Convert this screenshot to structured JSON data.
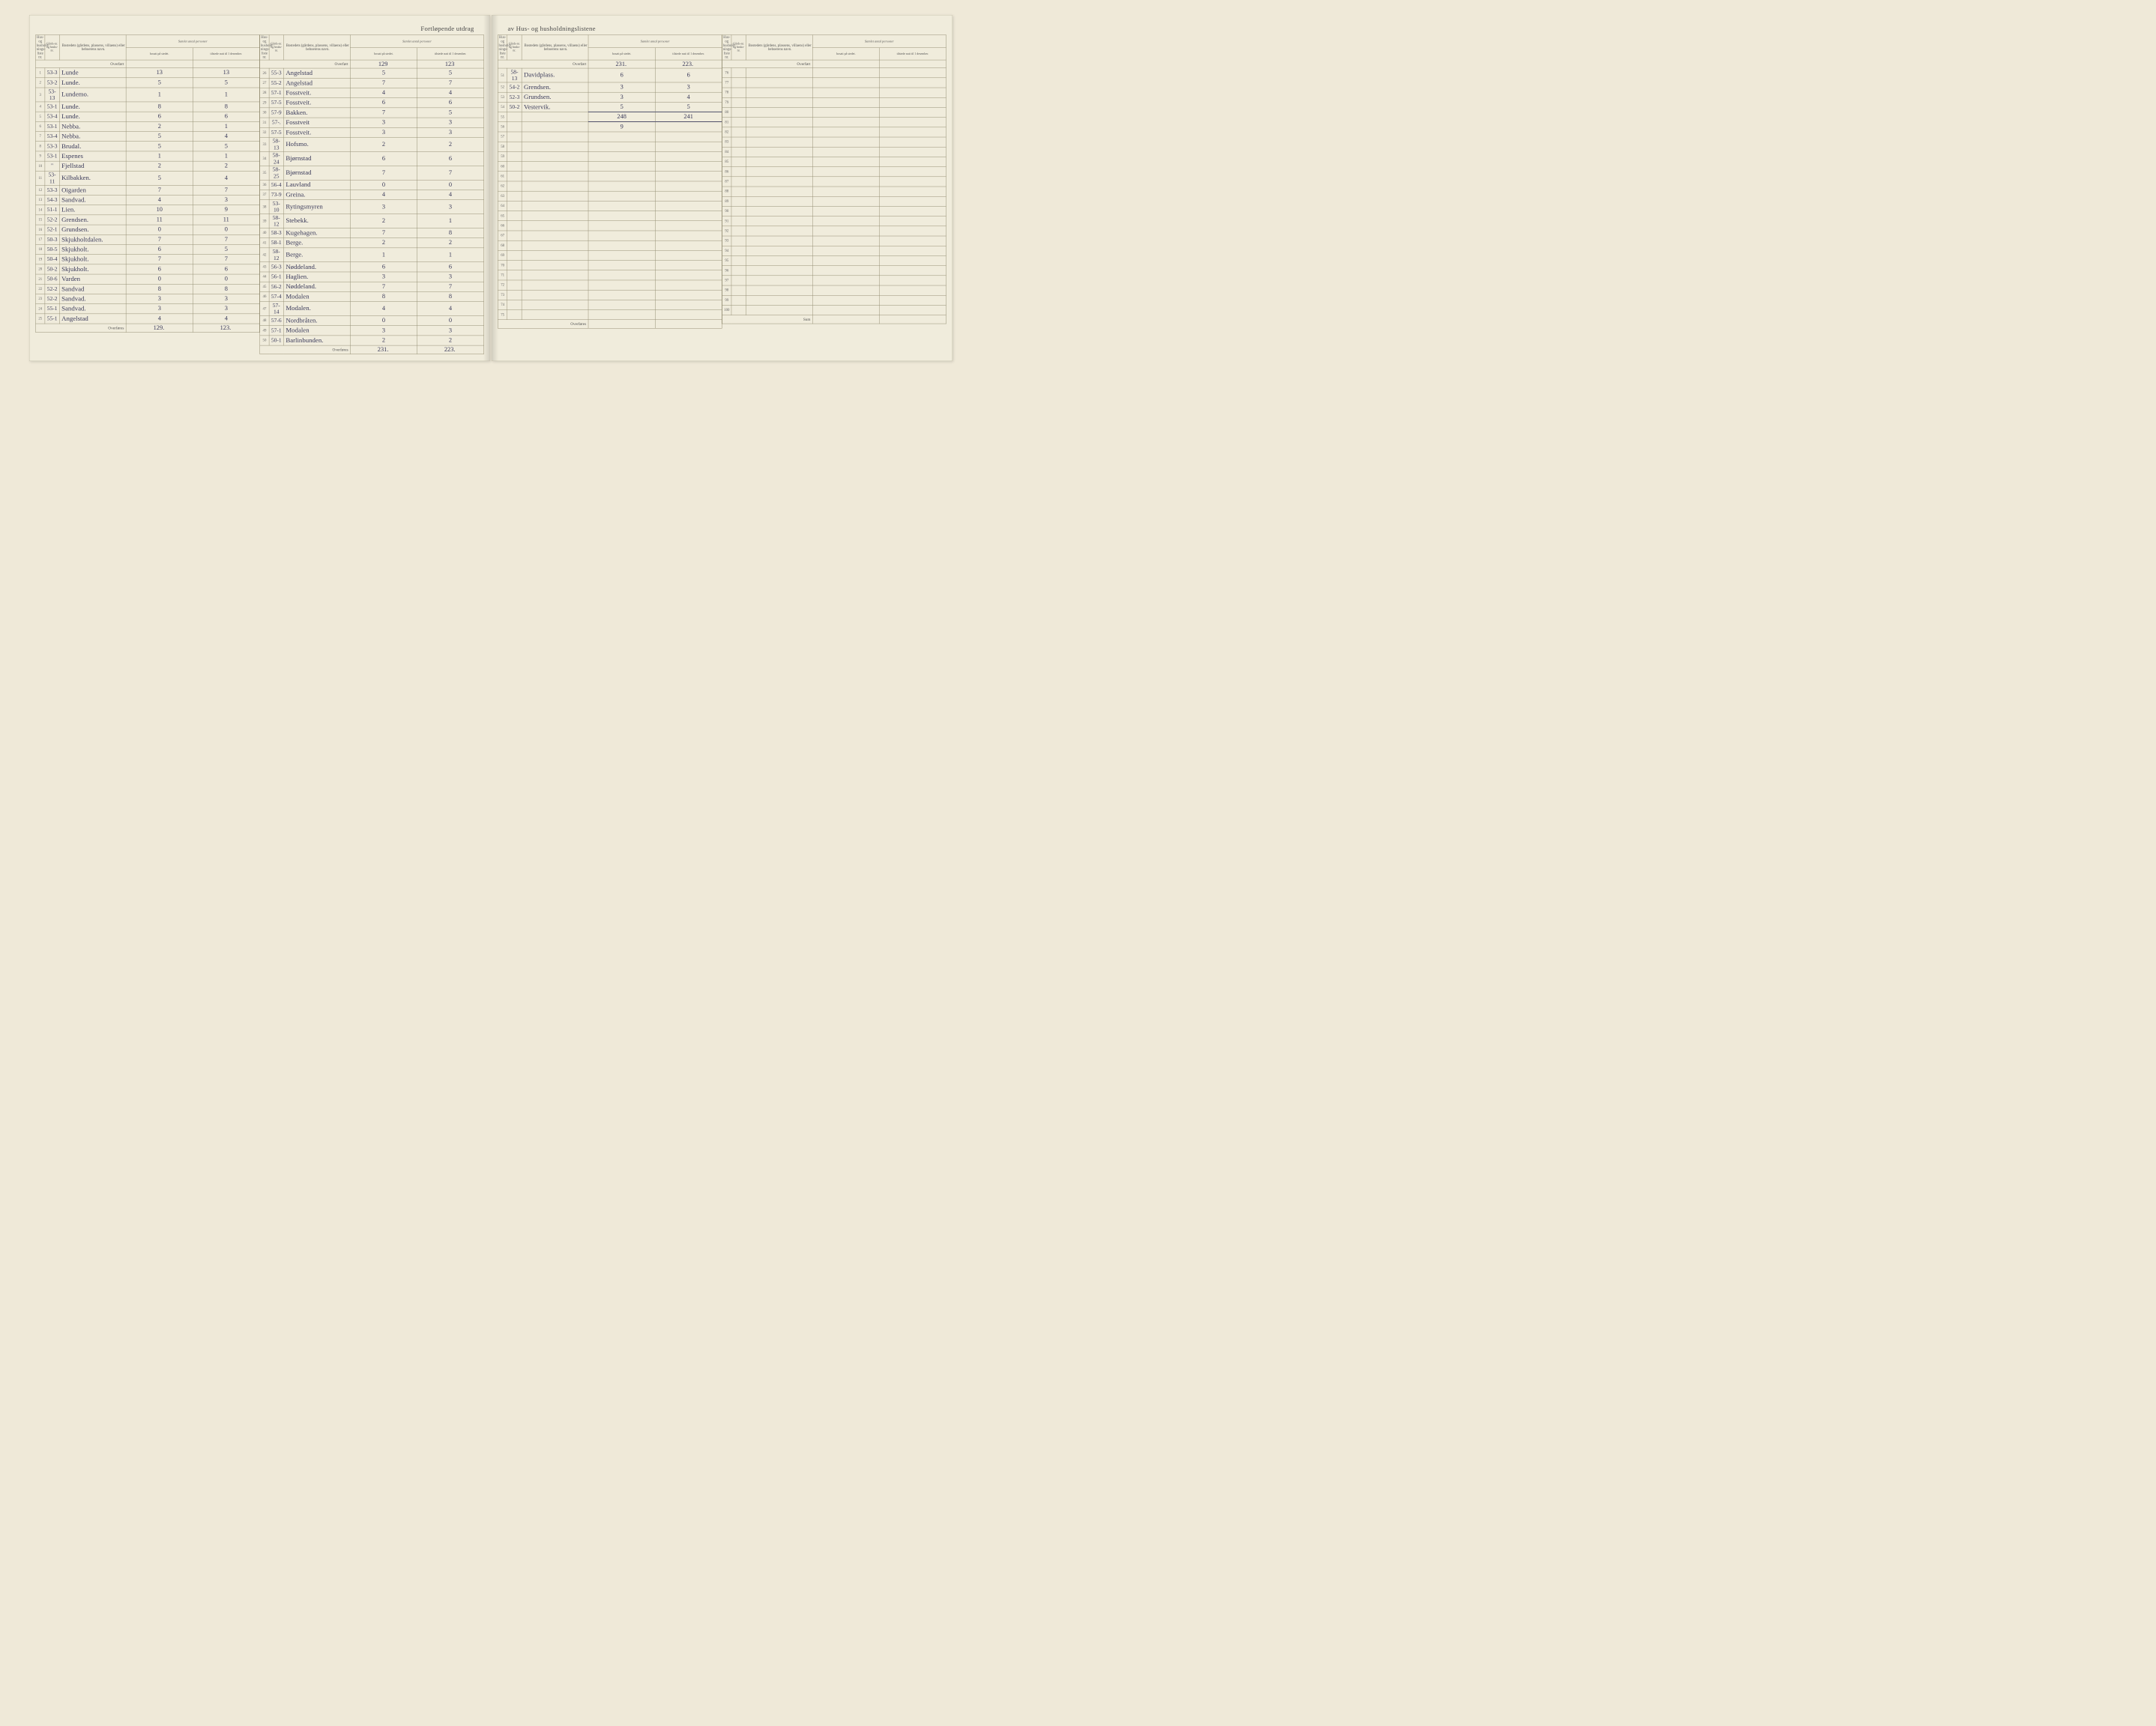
{
  "title_left": "Fortløpende utdrag",
  "title_right": "av Hus- og husholdningslistene",
  "headers": {
    "hus_nr": "Hus- og hushold-nings-liste nr.",
    "gard_nr": "Gårds-nr. og bruks-nr.",
    "bosted": "Bostedets (gårdens, plassens, villaens) eller beboerens navn.",
    "samlet_group": "Samlet antal personer",
    "bosatt": "bosatt på stedet.",
    "tilstede": "tilstede natt til 1 desember."
  },
  "overfort_label": "Overført",
  "overfores_label": "Overføres",
  "sum_label": "Sum",
  "col1": {
    "rows": [
      {
        "n": "1",
        "g": "53-3",
        "b": "Lunde",
        "bo": "13",
        "ti": "13"
      },
      {
        "n": "2",
        "g": "53-2",
        "b": "Lunde.",
        "bo": "5",
        "ti": "5"
      },
      {
        "n": "3",
        "g": "53-13",
        "b": "Lundemo.",
        "bo": "1",
        "ti": "1"
      },
      {
        "n": "4",
        "g": "53-1",
        "b": "Lunde.",
        "bo": "8",
        "ti": "8"
      },
      {
        "n": "5",
        "g": "53-4",
        "b": "Lunde.",
        "bo": "6",
        "ti": "6"
      },
      {
        "n": "6",
        "g": "53-1",
        "b": "Nebba.",
        "bo": "2",
        "ti": "1"
      },
      {
        "n": "7",
        "g": "53-4",
        "b": "Nebba.",
        "bo": "5",
        "ti": "4"
      },
      {
        "n": "8",
        "g": "53-3",
        "b": "Brudal.",
        "bo": "5",
        "ti": "5"
      },
      {
        "n": "9",
        "g": "53-1",
        "b": "Espenes",
        "bo": "1",
        "ti": "1"
      },
      {
        "n": "10",
        "g": "\"",
        "b": "Fjellstad",
        "bo": "2",
        "ti": "2"
      },
      {
        "n": "11",
        "g": "53-11",
        "b": "Kilbakken.",
        "bo": "5",
        "ti": "4"
      },
      {
        "n": "12",
        "g": "53-3",
        "b": "Oigarden",
        "bo": "7",
        "ti": "7"
      },
      {
        "n": "13",
        "g": "54-3",
        "b": "Sandvad.",
        "bo": "4",
        "ti": "3"
      },
      {
        "n": "14",
        "g": "51-1",
        "b": "Lien.",
        "bo": "10",
        "ti": "9"
      },
      {
        "n": "15",
        "g": "52-2",
        "b": "Grendsen.",
        "bo": "11",
        "ti": "11"
      },
      {
        "n": "16",
        "g": "52-1",
        "b": "Grundsen.",
        "bo": "0",
        "ti": "0"
      },
      {
        "n": "17",
        "g": "50-3",
        "b": "Skjukholtdalen.",
        "bo": "7",
        "ti": "7"
      },
      {
        "n": "18",
        "g": "50-5",
        "b": "Skjukholt.",
        "bo": "6",
        "ti": "5"
      },
      {
        "n": "19",
        "g": "50-4",
        "b": "Skjukholt.",
        "bo": "7",
        "ti": "7"
      },
      {
        "n": "20",
        "g": "50-2",
        "b": "Skjukholt.",
        "bo": "6",
        "ti": "6"
      },
      {
        "n": "21",
        "g": "50-6",
        "b": "Varden",
        "bo": "0",
        "ti": "0"
      },
      {
        "n": "22",
        "g": "52-2",
        "b": "Sandvad",
        "bo": "8",
        "ti": "8"
      },
      {
        "n": "23",
        "g": "52-2",
        "b": "Sandvad.",
        "bo": "3",
        "ti": "3"
      },
      {
        "n": "24",
        "g": "55-1",
        "b": "Sandvad.",
        "bo": "3",
        "ti": "3"
      },
      {
        "n": "25",
        "g": "55-1",
        "b": "Angelstad",
        "bo": "4",
        "ti": "4"
      }
    ],
    "overfort": {
      "bo": "",
      "ti": ""
    },
    "overfores": {
      "bo": "129.",
      "ti": "123."
    }
  },
  "col2": {
    "rows": [
      {
        "n": "26",
        "g": "55-3",
        "b": "Angelstad",
        "bo": "5",
        "ti": "5"
      },
      {
        "n": "27",
        "g": "55-2",
        "b": "Angelstad",
        "bo": "7",
        "ti": "7"
      },
      {
        "n": "28",
        "g": "57-1",
        "b": "Fosstveit.",
        "bo": "4",
        "ti": "4"
      },
      {
        "n": "29",
        "g": "57-5",
        "b": "Fosstveit.",
        "bo": "6",
        "ti": "6"
      },
      {
        "n": "30",
        "g": "57-9",
        "b": "Bakken.",
        "bo": "7",
        "ti": "5"
      },
      {
        "n": "31",
        "g": "57-.",
        "b": "Fosstveit",
        "bo": "3",
        "ti": "3"
      },
      {
        "n": "32",
        "g": "57-5",
        "b": "Fosstveit.",
        "bo": "3",
        "ti": "3"
      },
      {
        "n": "33",
        "g": "58-13",
        "b": "Hofsmo.",
        "bo": "2",
        "ti": "2"
      },
      {
        "n": "34",
        "g": "58-24",
        "b": "Bjørnstad",
        "bo": "6",
        "ti": "6"
      },
      {
        "n": "35",
        "g": "58-25",
        "b": "Bjørnstad",
        "bo": "7",
        "ti": "7"
      },
      {
        "n": "36",
        "g": "56-4",
        "b": "Lauvland",
        "bo": "0",
        "ti": "0"
      },
      {
        "n": "37",
        "g": "73-9",
        "b": "Greina.",
        "bo": "4",
        "ti": "4"
      },
      {
        "n": "38",
        "g": "53-10",
        "b": "Rytingsmyren",
        "bo": "3",
        "ti": "3"
      },
      {
        "n": "39",
        "g": "58-12",
        "b": "Stebekk.",
        "bo": "2",
        "ti": "1"
      },
      {
        "n": "40",
        "g": "58-3",
        "b": "Kugehagen.",
        "bo": "7",
        "ti": "8"
      },
      {
        "n": "41",
        "g": "58-1",
        "b": "Berge.",
        "bo": "2",
        "ti": "2"
      },
      {
        "n": "42",
        "g": "58-12",
        "b": "Berge.",
        "bo": "1",
        "ti": "1"
      },
      {
        "n": "43",
        "g": "56-3",
        "b": "Nøddeland.",
        "bo": "6",
        "ti": "6"
      },
      {
        "n": "44",
        "g": "56-1",
        "b": "Haglien.",
        "bo": "3",
        "ti": "3"
      },
      {
        "n": "45",
        "g": "56-2",
        "b": "Nøddeland.",
        "bo": "7",
        "ti": "7"
      },
      {
        "n": "46",
        "g": "57-4",
        "b": "Modalen",
        "bo": "8",
        "ti": "8"
      },
      {
        "n": "47",
        "g": "57-14",
        "b": "Modalen.",
        "bo": "4",
        "ti": "4"
      },
      {
        "n": "48",
        "g": "57-6",
        "b": "Nordbråten.",
        "bo": "0",
        "ti": "0"
      },
      {
        "n": "49",
        "g": "57-1",
        "b": "Modalen",
        "bo": "3",
        "ti": "3"
      },
      {
        "n": "50",
        "g": "50-1",
        "b": "Barlinbunden.",
        "bo": "2",
        "ti": "2"
      }
    ],
    "overfort": {
      "bo": "129",
      "ti": "123"
    },
    "overfores": {
      "bo": "231.",
      "ti": "223."
    }
  },
  "col3": {
    "rows": [
      {
        "n": "51",
        "g": "58-13",
        "b": "Davidplass.",
        "bo": "6",
        "ti": "6"
      },
      {
        "n": "52",
        "g": "54-2",
        "b": "Grendsen.",
        "bo": "3",
        "ti": "3"
      },
      {
        "n": "53",
        "g": "52-3",
        "b": "Grundsen.",
        "bo": "3",
        "ti": "4"
      },
      {
        "n": "54",
        "g": "50-2",
        "b": "Vestervik.",
        "bo": "5",
        "ti": "5"
      },
      {
        "n": "55",
        "g": "",
        "b": "",
        "bo": "248",
        "ti": "241",
        "sum": true
      },
      {
        "n": "56",
        "g": "",
        "b": "",
        "bo": "9",
        "ti": ""
      },
      {
        "n": "57",
        "g": "",
        "b": "",
        "bo": "",
        "ti": ""
      },
      {
        "n": "58",
        "g": "",
        "b": "",
        "bo": "",
        "ti": ""
      },
      {
        "n": "59",
        "g": "",
        "b": "",
        "bo": "",
        "ti": ""
      },
      {
        "n": "60",
        "g": "",
        "b": "",
        "bo": "",
        "ti": ""
      },
      {
        "n": "61",
        "g": "",
        "b": "",
        "bo": "",
        "ti": ""
      },
      {
        "n": "62",
        "g": "",
        "b": "",
        "bo": "",
        "ti": ""
      },
      {
        "n": "63",
        "g": "",
        "b": "",
        "bo": "",
        "ti": ""
      },
      {
        "n": "64",
        "g": "",
        "b": "",
        "bo": "",
        "ti": ""
      },
      {
        "n": "65",
        "g": "",
        "b": "",
        "bo": "",
        "ti": ""
      },
      {
        "n": "66",
        "g": "",
        "b": "",
        "bo": "",
        "ti": ""
      },
      {
        "n": "67",
        "g": "",
        "b": "",
        "bo": "",
        "ti": ""
      },
      {
        "n": "68",
        "g": "",
        "b": "",
        "bo": "",
        "ti": ""
      },
      {
        "n": "69",
        "g": "",
        "b": "",
        "bo": "",
        "ti": ""
      },
      {
        "n": "70",
        "g": "",
        "b": "",
        "bo": "",
        "ti": ""
      },
      {
        "n": "71",
        "g": "",
        "b": "",
        "bo": "",
        "ti": ""
      },
      {
        "n": "72",
        "g": "",
        "b": "",
        "bo": "",
        "ti": ""
      },
      {
        "n": "73",
        "g": "",
        "b": "",
        "bo": "",
        "ti": ""
      },
      {
        "n": "74",
        "g": "",
        "b": "",
        "bo": "",
        "ti": ""
      },
      {
        "n": "75",
        "g": "",
        "b": "",
        "bo": "",
        "ti": ""
      }
    ],
    "overfort": {
      "bo": "231.",
      "ti": "223."
    },
    "overfores": {
      "bo": "",
      "ti": ""
    }
  },
  "col4": {
    "rows": [
      {
        "n": "76",
        "g": "",
        "b": "",
        "bo": "",
        "ti": ""
      },
      {
        "n": "77",
        "g": "",
        "b": "",
        "bo": "",
        "ti": ""
      },
      {
        "n": "78",
        "g": "",
        "b": "",
        "bo": "",
        "ti": ""
      },
      {
        "n": "79",
        "g": "",
        "b": "",
        "bo": "",
        "ti": ""
      },
      {
        "n": "80",
        "g": "",
        "b": "",
        "bo": "",
        "ti": ""
      },
      {
        "n": "81",
        "g": "",
        "b": "",
        "bo": "",
        "ti": ""
      },
      {
        "n": "82",
        "g": "",
        "b": "",
        "bo": "",
        "ti": ""
      },
      {
        "n": "83",
        "g": "",
        "b": "",
        "bo": "",
        "ti": ""
      },
      {
        "n": "84",
        "g": "",
        "b": "",
        "bo": "",
        "ti": ""
      },
      {
        "n": "85",
        "g": "",
        "b": "",
        "bo": "",
        "ti": ""
      },
      {
        "n": "86",
        "g": "",
        "b": "",
        "bo": "",
        "ti": ""
      },
      {
        "n": "87",
        "g": "",
        "b": "",
        "bo": "",
        "ti": ""
      },
      {
        "n": "88",
        "g": "",
        "b": "",
        "bo": "",
        "ti": ""
      },
      {
        "n": "89",
        "g": "",
        "b": "",
        "bo": "",
        "ti": ""
      },
      {
        "n": "90",
        "g": "",
        "b": "",
        "bo": "",
        "ti": ""
      },
      {
        "n": "91",
        "g": "",
        "b": "",
        "bo": "",
        "ti": ""
      },
      {
        "n": "92",
        "g": "",
        "b": "",
        "bo": "",
        "ti": ""
      },
      {
        "n": "93",
        "g": "",
        "b": "",
        "bo": "",
        "ti": ""
      },
      {
        "n": "94",
        "g": "",
        "b": "",
        "bo": "",
        "ti": ""
      },
      {
        "n": "95",
        "g": "",
        "b": "",
        "bo": "",
        "ti": ""
      },
      {
        "n": "96",
        "g": "",
        "b": "",
        "bo": "",
        "ti": ""
      },
      {
        "n": "97",
        "g": "",
        "b": "",
        "bo": "",
        "ti": ""
      },
      {
        "n": "98",
        "g": "",
        "b": "",
        "bo": "",
        "ti": ""
      },
      {
        "n": "99",
        "g": "",
        "b": "",
        "bo": "",
        "ti": ""
      },
      {
        "n": "100",
        "g": "",
        "b": "",
        "bo": "",
        "ti": ""
      }
    ],
    "overfort": {
      "bo": "",
      "ti": ""
    },
    "overfores": {
      "bo": "",
      "ti": ""
    },
    "sum": true
  },
  "colors": {
    "paper": "#f0ecdc",
    "border": "#8a8468",
    "print": "#555555",
    "ink": "#3a3a5a"
  }
}
